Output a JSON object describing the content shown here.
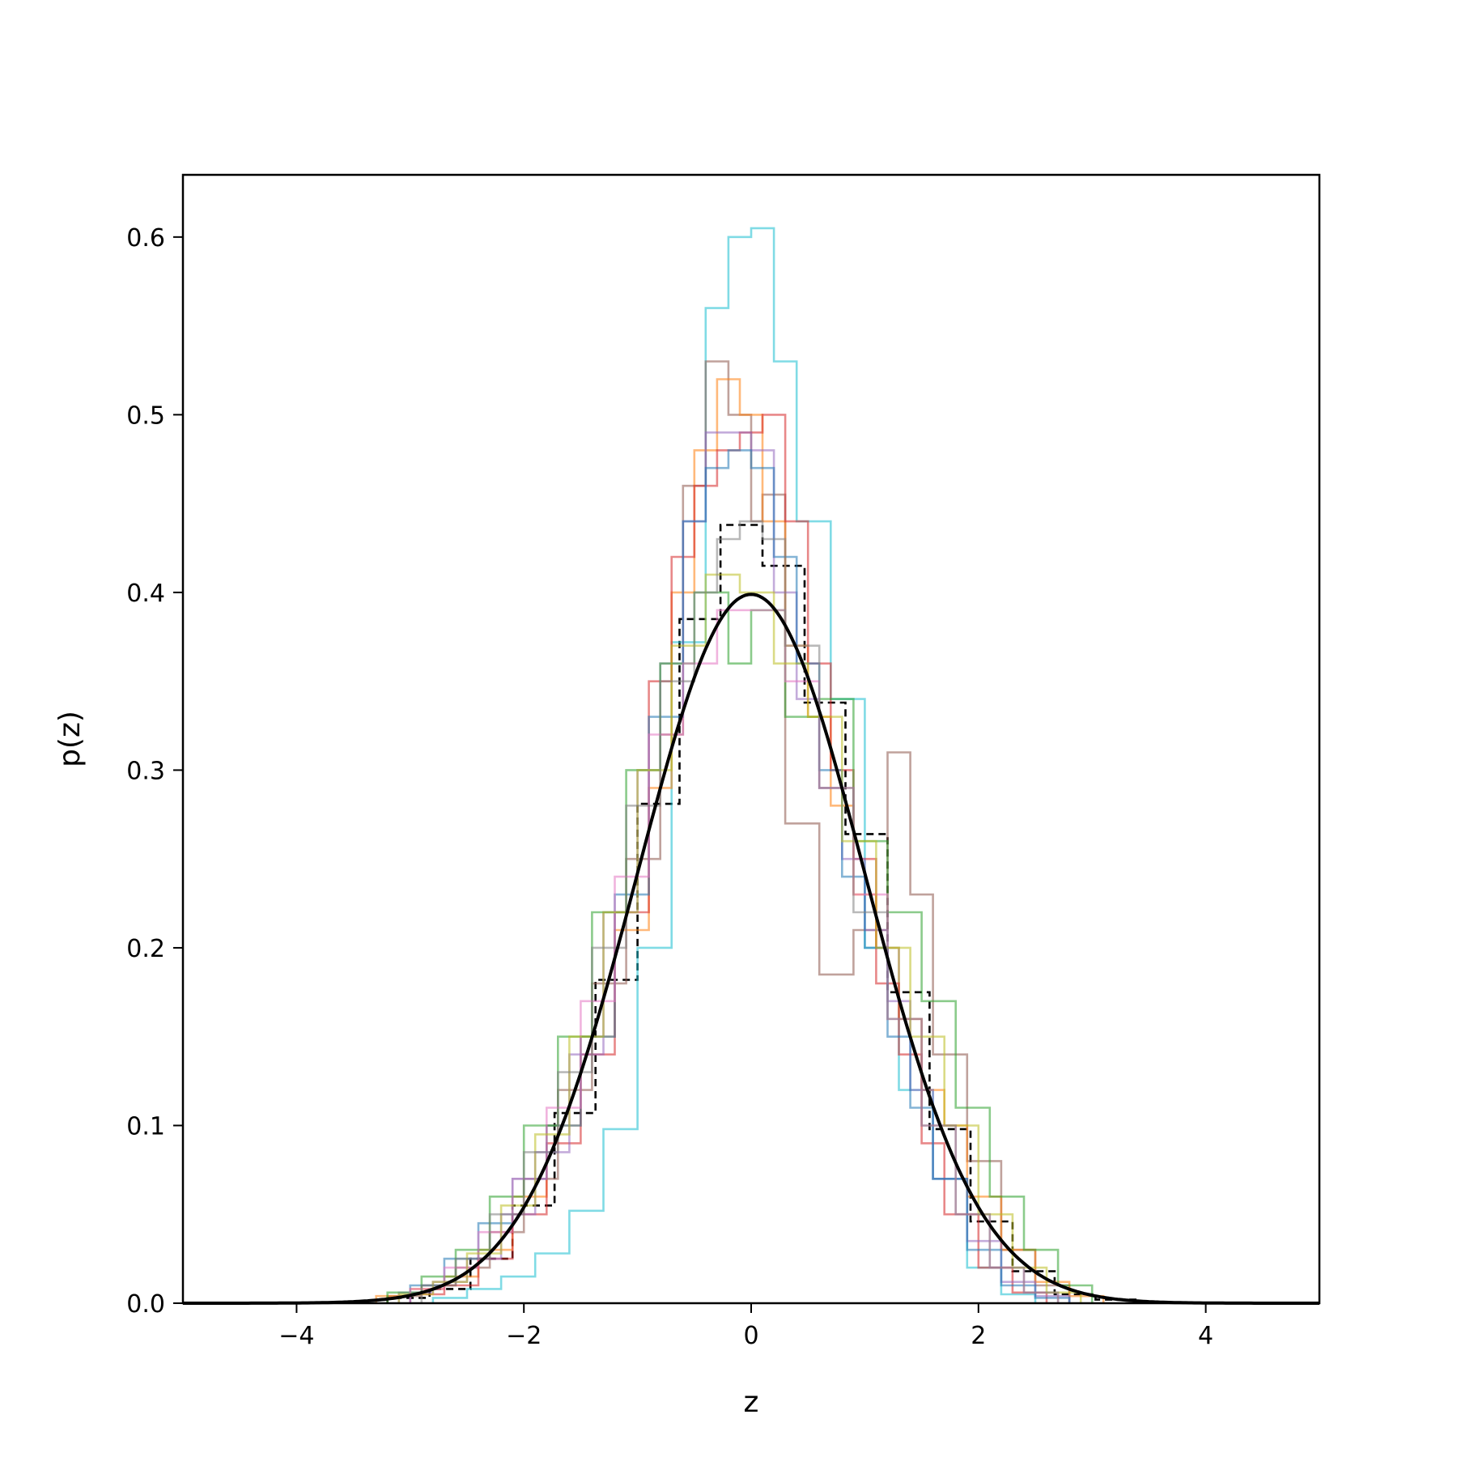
{
  "chart_data": {
    "type": "line",
    "title": "",
    "xlabel": "z",
    "ylabel": "p(z)",
    "xlim": [
      -5,
      5
    ],
    "ylim": [
      0,
      0.635
    ],
    "grid": false,
    "legend": "none",
    "x_ticks": [
      -4,
      -2,
      0,
      2,
      4
    ],
    "x_tick_labels": [
      "−4",
      "−2",
      "0",
      "2",
      "4"
    ],
    "y_ticks": [
      0.0,
      0.1,
      0.2,
      0.3,
      0.4,
      0.5,
      0.6
    ],
    "y_tick_labels": [
      "0.0",
      "0.1",
      "0.2",
      "0.3",
      "0.4",
      "0.5",
      "0.6"
    ],
    "reference_curve": {
      "type": "line",
      "function": "standard normal pdf",
      "mean": 0,
      "std": 1,
      "x_range": [
        -5,
        5
      ],
      "color": "#000000",
      "style": "solid"
    },
    "series": [
      {
        "style": "dashed",
        "color": "#000000",
        "opacity": 1.0,
        "edges": [
          -3.2,
          -2.83,
          -2.47,
          -2.1,
          -1.73,
          -1.37,
          -1.0,
          -0.63,
          -0.27,
          0.1,
          0.47,
          0.83,
          1.2,
          1.57,
          1.93,
          2.3,
          2.67,
          3.03,
          3.4
        ],
        "values": [
          0.003,
          0.008,
          0.025,
          0.055,
          0.107,
          0.182,
          0.281,
          0.385,
          0.438,
          0.415,
          0.338,
          0.264,
          0.175,
          0.098,
          0.046,
          0.018,
          0.005,
          0.002
        ]
      },
      {
        "style": "solid",
        "color": "#17becf",
        "opacity": 0.55,
        "edges": [
          -2.8,
          -2.5,
          -2.2,
          -1.9,
          -1.6,
          -1.3,
          -1.0,
          -0.7,
          -0.4,
          -0.2,
          0.0,
          0.2,
          0.4,
          0.7,
          1.0,
          1.3,
          1.6,
          1.9,
          2.2,
          2.5
        ],
        "values": [
          0.003,
          0.008,
          0.015,
          0.028,
          0.052,
          0.098,
          0.2,
          0.372,
          0.56,
          0.6,
          0.605,
          0.53,
          0.44,
          0.34,
          0.2,
          0.12,
          0.07,
          0.02,
          0.005
        ]
      },
      {
        "style": "solid",
        "color": "#8c564b",
        "opacity": 0.55,
        "edges": [
          -3.2,
          -2.9,
          -2.6,
          -2.3,
          -2.0,
          -1.7,
          -1.4,
          -1.1,
          -0.8,
          -0.6,
          -0.4,
          -0.2,
          0.0,
          0.1,
          0.3,
          0.6,
          0.9,
          1.2,
          1.4,
          1.6,
          1.9,
          2.2,
          2.5,
          2.8
        ],
        "values": [
          0.004,
          0.01,
          0.02,
          0.04,
          0.07,
          0.12,
          0.18,
          0.25,
          0.32,
          0.46,
          0.53,
          0.5,
          0.44,
          0.455,
          0.27,
          0.185,
          0.21,
          0.31,
          0.23,
          0.14,
          0.08,
          0.03,
          0.01
        ]
      },
      {
        "style": "solid",
        "color": "#ff7f0e",
        "opacity": 0.55,
        "edges": [
          -3.3,
          -3.0,
          -2.7,
          -2.4,
          -2.1,
          -1.8,
          -1.5,
          -1.2,
          -0.9,
          -0.7,
          -0.5,
          -0.3,
          -0.1,
          0.1,
          0.3,
          0.5,
          0.7,
          0.9,
          1.1,
          1.3,
          1.5,
          1.7,
          1.9,
          2.2,
          2.5,
          2.8,
          3.1
        ],
        "values": [
          0.004,
          0.008,
          0.015,
          0.03,
          0.06,
          0.1,
          0.15,
          0.21,
          0.29,
          0.4,
          0.48,
          0.52,
          0.5,
          0.44,
          0.37,
          0.33,
          0.28,
          0.23,
          0.2,
          0.16,
          0.12,
          0.1,
          0.06,
          0.03,
          0.012,
          0.004
        ]
      },
      {
        "style": "solid",
        "color": "#d62728",
        "opacity": 0.55,
        "edges": [
          -3.0,
          -2.7,
          -2.4,
          -2.1,
          -1.8,
          -1.5,
          -1.2,
          -0.9,
          -0.7,
          -0.5,
          -0.3,
          -0.1,
          0.1,
          0.3,
          0.5,
          0.7,
          0.9,
          1.1,
          1.3,
          1.5,
          1.7,
          2.0,
          2.3,
          2.6
        ],
        "values": [
          0.005,
          0.01,
          0.025,
          0.05,
          0.09,
          0.14,
          0.22,
          0.35,
          0.42,
          0.46,
          0.48,
          0.49,
          0.5,
          0.44,
          0.36,
          0.3,
          0.25,
          0.18,
          0.14,
          0.09,
          0.05,
          0.02,
          0.006
        ]
      },
      {
        "style": "solid",
        "color": "#9467bd",
        "opacity": 0.55,
        "edges": [
          -3.1,
          -2.8,
          -2.5,
          -2.2,
          -1.9,
          -1.6,
          -1.3,
          -1.0,
          -0.8,
          -0.6,
          -0.4,
          -0.2,
          0.0,
          0.2,
          0.4,
          0.6,
          0.8,
          1.0,
          1.2,
          1.4,
          1.6,
          1.9,
          2.2,
          2.5,
          2.8
        ],
        "values": [
          0.006,
          0.012,
          0.025,
          0.05,
          0.085,
          0.14,
          0.22,
          0.3,
          0.36,
          0.44,
          0.49,
          0.49,
          0.48,
          0.4,
          0.34,
          0.29,
          0.25,
          0.21,
          0.17,
          0.12,
          0.07,
          0.035,
          0.012,
          0.004
        ]
      },
      {
        "style": "solid",
        "color": "#1f77b4",
        "opacity": 0.55,
        "edges": [
          -3.0,
          -2.7,
          -2.4,
          -2.1,
          -1.8,
          -1.5,
          -1.2,
          -0.9,
          -0.6,
          -0.4,
          -0.2,
          0.0,
          0.2,
          0.4,
          0.6,
          0.8,
          1.0,
          1.2,
          1.4,
          1.6,
          1.9,
          2.2,
          2.5,
          2.8
        ],
        "values": [
          0.01,
          0.025,
          0.045,
          0.07,
          0.1,
          0.15,
          0.23,
          0.33,
          0.44,
          0.47,
          0.48,
          0.47,
          0.42,
          0.36,
          0.3,
          0.24,
          0.2,
          0.15,
          0.11,
          0.07,
          0.03,
          0.01,
          0.003
        ]
      },
      {
        "style": "solid",
        "color": "#2ca02c",
        "opacity": 0.55,
        "edges": [
          -3.2,
          -2.9,
          -2.6,
          -2.3,
          -2.0,
          -1.7,
          -1.4,
          -1.1,
          -0.8,
          -0.5,
          -0.2,
          0.0,
          0.3,
          0.6,
          0.9,
          1.2,
          1.5,
          1.8,
          2.1,
          2.4,
          2.7,
          3.0
        ],
        "values": [
          0.006,
          0.015,
          0.03,
          0.06,
          0.1,
          0.15,
          0.22,
          0.3,
          0.36,
          0.4,
          0.36,
          0.39,
          0.33,
          0.34,
          0.26,
          0.22,
          0.17,
          0.11,
          0.06,
          0.03,
          0.01
        ]
      },
      {
        "style": "solid",
        "color": "#e377c2",
        "opacity": 0.55,
        "edges": [
          -3.0,
          -2.7,
          -2.4,
          -2.1,
          -1.8,
          -1.5,
          -1.2,
          -0.9,
          -0.6,
          -0.3,
          0.0,
          0.3,
          0.6,
          0.9,
          1.2,
          1.5,
          1.8,
          2.1,
          2.4,
          2.7
        ],
        "values": [
          0.008,
          0.02,
          0.04,
          0.07,
          0.11,
          0.17,
          0.24,
          0.32,
          0.36,
          0.39,
          0.39,
          0.35,
          0.29,
          0.23,
          0.16,
          0.1,
          0.05,
          0.02,
          0.006
        ]
      },
      {
        "style": "solid",
        "color": "#bcbd22",
        "opacity": 0.55,
        "edges": [
          -3.1,
          -2.8,
          -2.5,
          -2.2,
          -1.9,
          -1.6,
          -1.3,
          -1.0,
          -0.7,
          -0.4,
          -0.1,
          0.2,
          0.5,
          0.8,
          1.1,
          1.4,
          1.7,
          2.0,
          2.3,
          2.6,
          2.9
        ],
        "values": [
          0.005,
          0.012,
          0.028,
          0.055,
          0.095,
          0.15,
          0.22,
          0.3,
          0.37,
          0.41,
          0.4,
          0.36,
          0.33,
          0.26,
          0.2,
          0.15,
          0.1,
          0.05,
          0.02,
          0.006
        ]
      },
      {
        "style": "solid",
        "color": "#7f7f7f",
        "opacity": 0.55,
        "edges": [
          -2.9,
          -2.6,
          -2.3,
          -2.0,
          -1.7,
          -1.4,
          -1.1,
          -0.8,
          -0.5,
          -0.3,
          -0.1,
          0.1,
          0.3,
          0.6,
          0.9,
          1.2,
          1.5,
          1.8,
          2.1,
          2.4,
          2.7
        ],
        "values": [
          0.01,
          0.025,
          0.05,
          0.085,
          0.13,
          0.2,
          0.28,
          0.35,
          0.4,
          0.43,
          0.44,
          0.43,
          0.37,
          0.29,
          0.22,
          0.16,
          0.1,
          0.05,
          0.02,
          0.006
        ]
      }
    ]
  }
}
